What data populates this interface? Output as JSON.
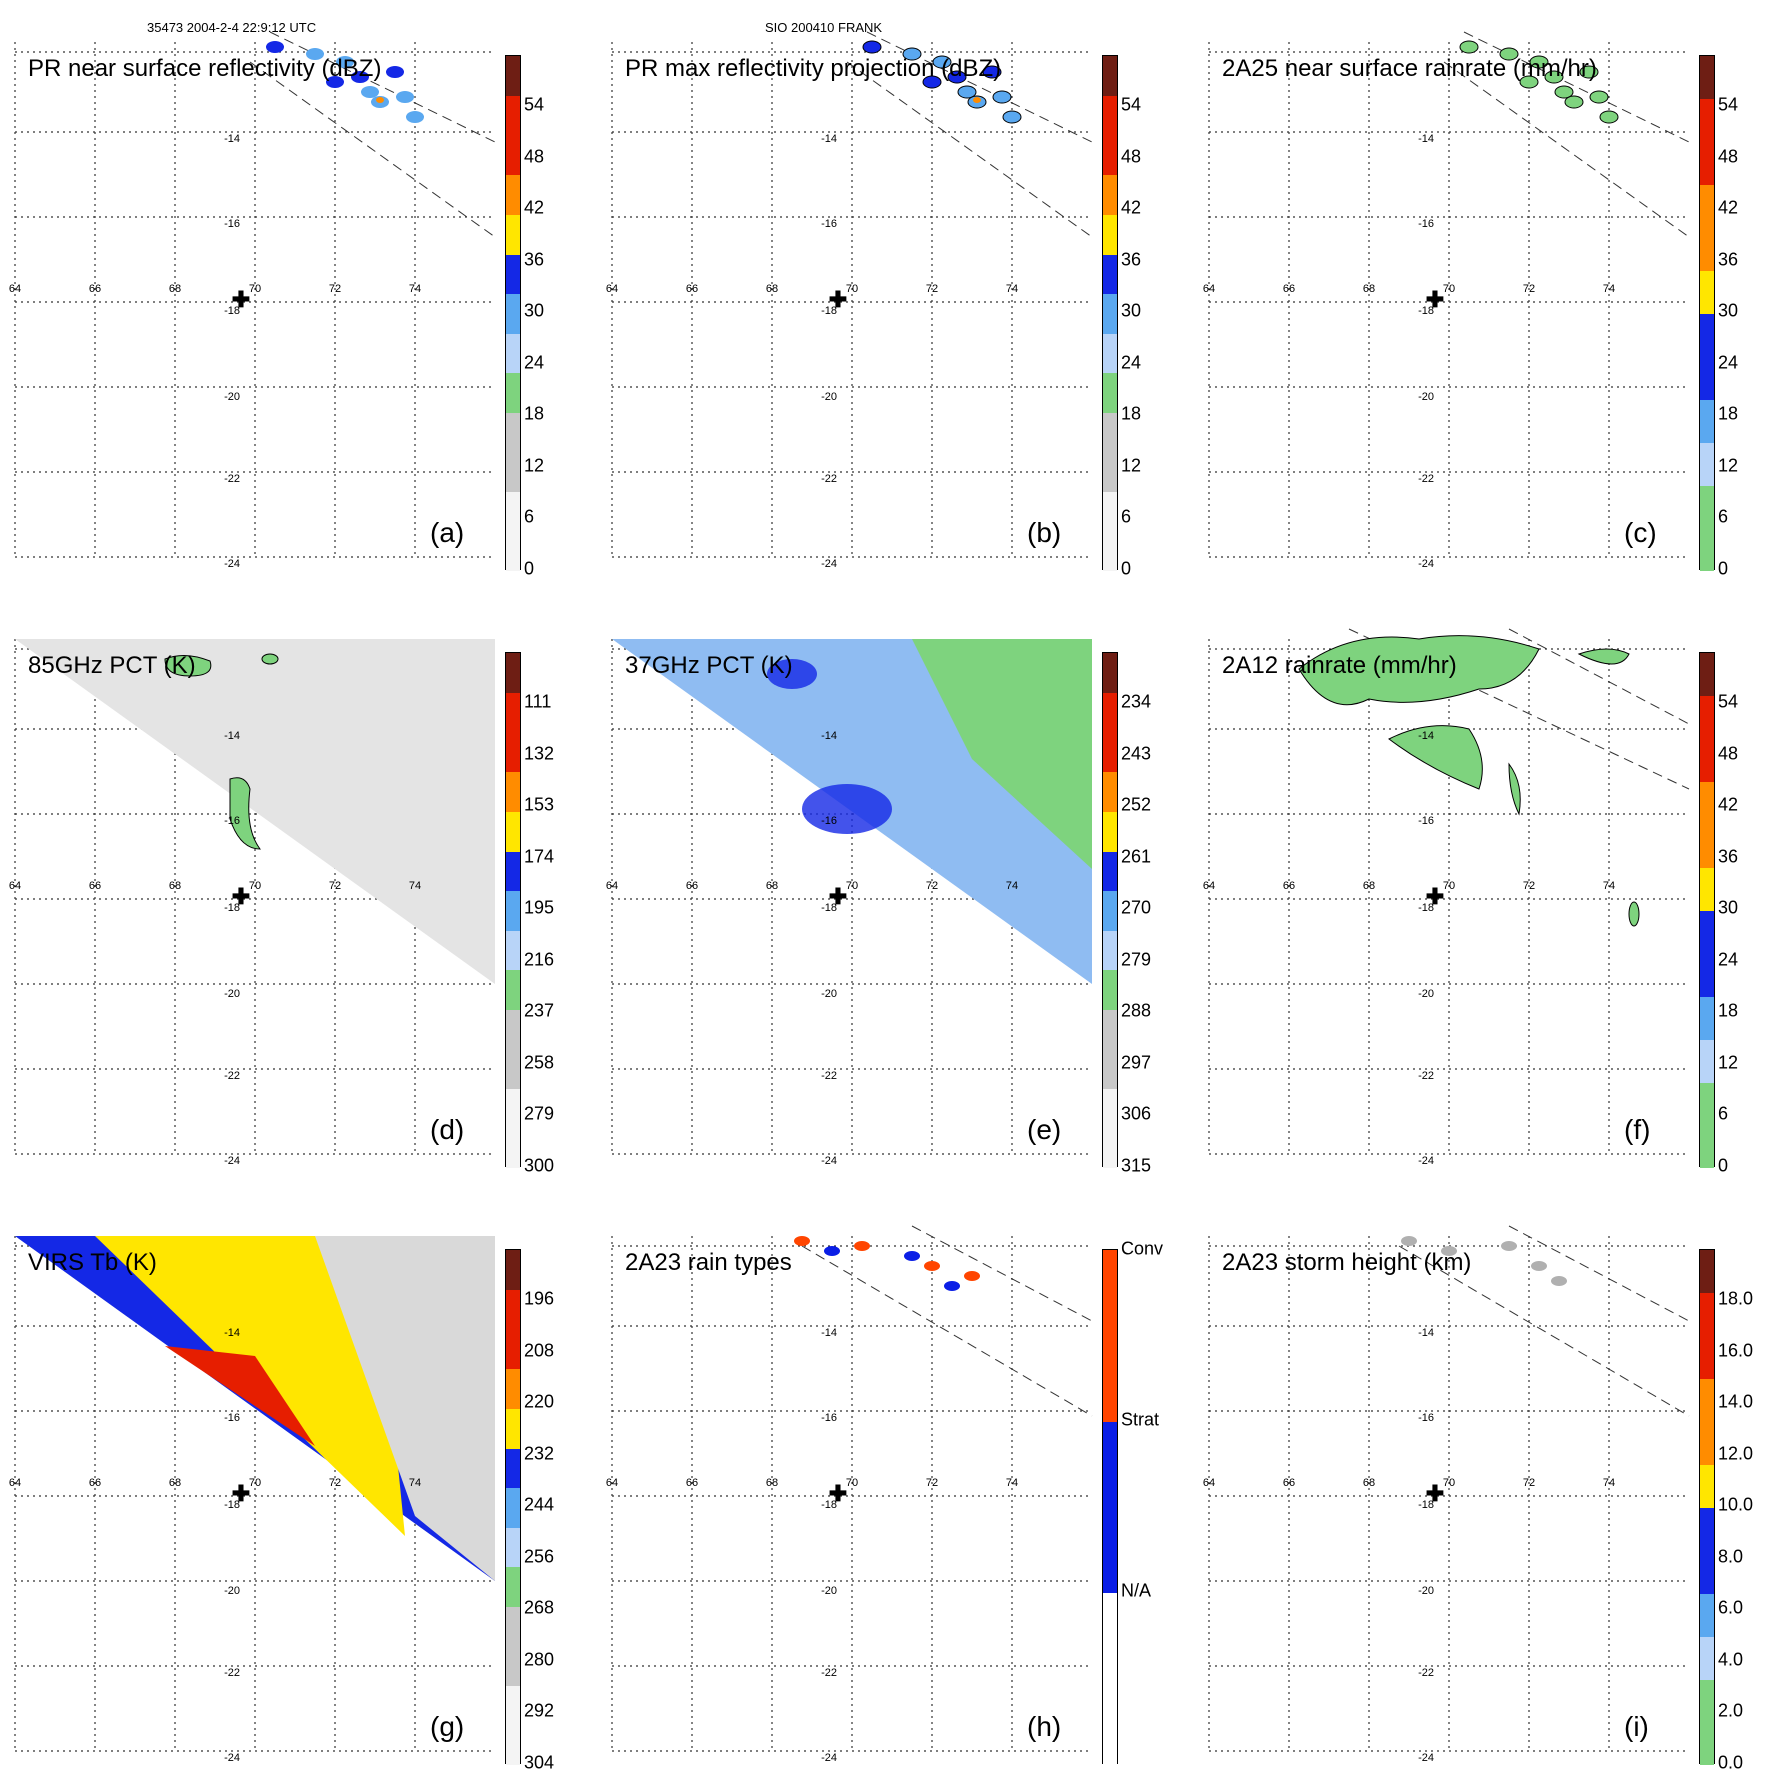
{
  "header": {
    "orbit_time": "35473 2004-2-4 22:9:12 UTC",
    "storm_id": "SIO 200410 FRANK"
  },
  "axes": {
    "lon_labels": [
      "64",
      "66",
      "68",
      "70",
      "72",
      "74"
    ],
    "lat_labels": [
      "-14",
      "-16",
      "-18",
      "-20",
      "-22",
      "-24"
    ]
  },
  "colors": {
    "gray_light": "#f4f4f4",
    "gray_mid": "#c8c8c8",
    "green": "#7ed37e",
    "lightblue": "#b8d4f8",
    "skyblue": "#5aa8f0",
    "blue": "#1428e6",
    "yellow": "#ffe600",
    "orange": "#ff8c00",
    "red": "#e61e00",
    "darkred": "#6e1e14",
    "conv": "#ff4500",
    "strat": "#0a1ee6"
  },
  "chart_data": [
    {
      "panel": "a",
      "type": "heatmap",
      "title": "PR near surface reflectivity (dBZ)",
      "label": "(a)",
      "colorbar_ticks": [
        "54",
        "48",
        "42",
        "36",
        "30",
        "24",
        "18",
        "12",
        "6",
        "0"
      ],
      "colorbar_range": [
        0,
        60
      ]
    },
    {
      "panel": "b",
      "type": "heatmap",
      "title": "PR max reflectivity projection (dBZ)",
      "label": "(b)",
      "colorbar_ticks": [
        "54",
        "48",
        "42",
        "36",
        "30",
        "24",
        "18",
        "12",
        "6",
        "0"
      ],
      "colorbar_range": [
        0,
        60
      ]
    },
    {
      "panel": "c",
      "type": "heatmap",
      "title": "2A25 near surface rainrate (mm/hr)",
      "label": "(c)",
      "colorbar_ticks": [
        "54",
        "48",
        "42",
        "36",
        "30",
        "24",
        "18",
        "12",
        "6",
        "0"
      ],
      "colorbar_range": [
        0,
        60
      ]
    },
    {
      "panel": "d",
      "type": "heatmap",
      "title": "85GHz PCT (K)",
      "label": "(d)",
      "colorbar_ticks": [
        "111",
        "132",
        "153",
        "174",
        "195",
        "216",
        "237",
        "258",
        "279",
        "300"
      ],
      "colorbar_range": [
        300,
        90
      ]
    },
    {
      "panel": "e",
      "type": "heatmap",
      "title": "37GHz PCT (K)",
      "label": "(e)",
      "colorbar_ticks": [
        "234",
        "243",
        "252",
        "261",
        "270",
        "279",
        "288",
        "297",
        "306",
        "315"
      ],
      "colorbar_range": [
        315,
        225
      ]
    },
    {
      "panel": "f",
      "type": "heatmap",
      "title": "2A12 rainrate (mm/hr)",
      "label": "(f)",
      "colorbar_ticks": [
        "54",
        "48",
        "42",
        "36",
        "30",
        "24",
        "18",
        "12",
        "6",
        "0"
      ],
      "colorbar_range": [
        0,
        60
      ]
    },
    {
      "panel": "g",
      "type": "heatmap",
      "title": "VIRS Tb (K)",
      "label": "(g)",
      "colorbar_ticks": [
        "196",
        "208",
        "220",
        "232",
        "244",
        "256",
        "268",
        "280",
        "292",
        "304"
      ],
      "colorbar_range": [
        304,
        184
      ]
    },
    {
      "panel": "h",
      "type": "heatmap",
      "title": "2A23 rain types",
      "label": "(h)",
      "colorbar_ticks": [
        "Conv",
        "Strat",
        "N/A"
      ],
      "categories": [
        "Conv",
        "Strat",
        "N/A"
      ]
    },
    {
      "panel": "i",
      "type": "heatmap",
      "title": "2A23 storm height (km)",
      "label": "(i)",
      "colorbar_ticks": [
        "18.0",
        "16.0",
        "14.0",
        "12.0",
        "10.0",
        "8.0",
        "6.0",
        "4.0",
        "2.0",
        "0.0"
      ],
      "colorbar_range": [
        0,
        20
      ]
    }
  ]
}
